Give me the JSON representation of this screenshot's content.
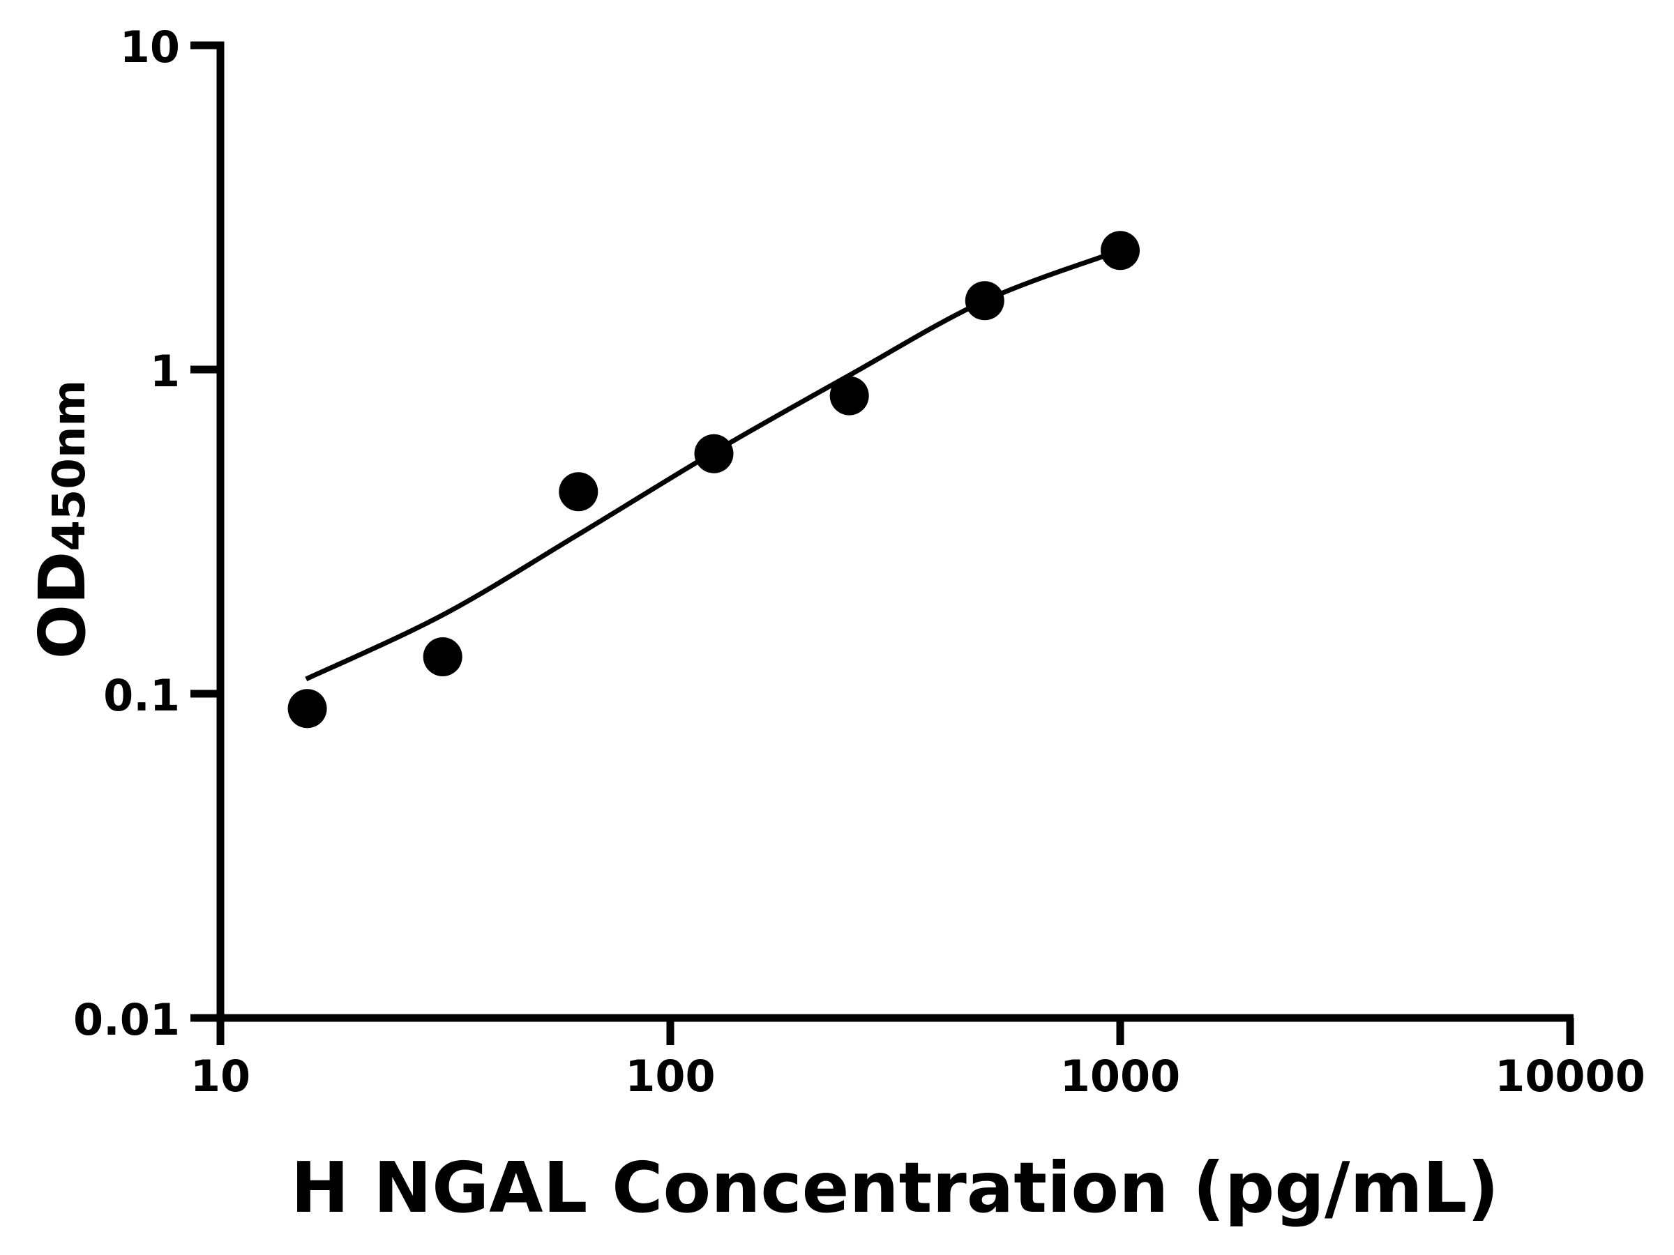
{
  "figure": {
    "background_color": "#ffffff",
    "ink_color": "#000000"
  },
  "chart_data": {
    "type": "scatter",
    "subtype": "elisa-standard-curve-with-fit-line",
    "title": "",
    "xlabel": "H NGAL Concentration (pg/mL)",
    "ylabel_main": "OD",
    "ylabel_sub": "450nm",
    "x_scale": "log10",
    "y_scale": "log10",
    "xlim": [
      10,
      10000
    ],
    "ylim": [
      0.01,
      10
    ],
    "x_ticks": [
      10,
      100,
      1000,
      10000
    ],
    "x_tick_labels": [
      "10",
      "100",
      "1000",
      "10000"
    ],
    "y_ticks": [
      10,
      1,
      0.1,
      0.01
    ],
    "y_tick_labels": [
      "10",
      "1",
      "0.1",
      "0.01"
    ],
    "grid": false,
    "legend": "none",
    "marker_shape": "circle",
    "marker_color": "#000000",
    "line_color": "#000000",
    "points": {
      "x": [
        15.6,
        31.2,
        62.5,
        125,
        250,
        500,
        1000
      ],
      "y": [
        0.09,
        0.13,
        0.42,
        0.55,
        0.83,
        1.63,
        2.33
      ]
    },
    "fit_curve": {
      "x": [
        15.5,
        31.2,
        62.5,
        125,
        250,
        500,
        1000
      ],
      "y": [
        0.111,
        0.175,
        0.31,
        0.556,
        0.96,
        1.63,
        2.33
      ]
    }
  }
}
